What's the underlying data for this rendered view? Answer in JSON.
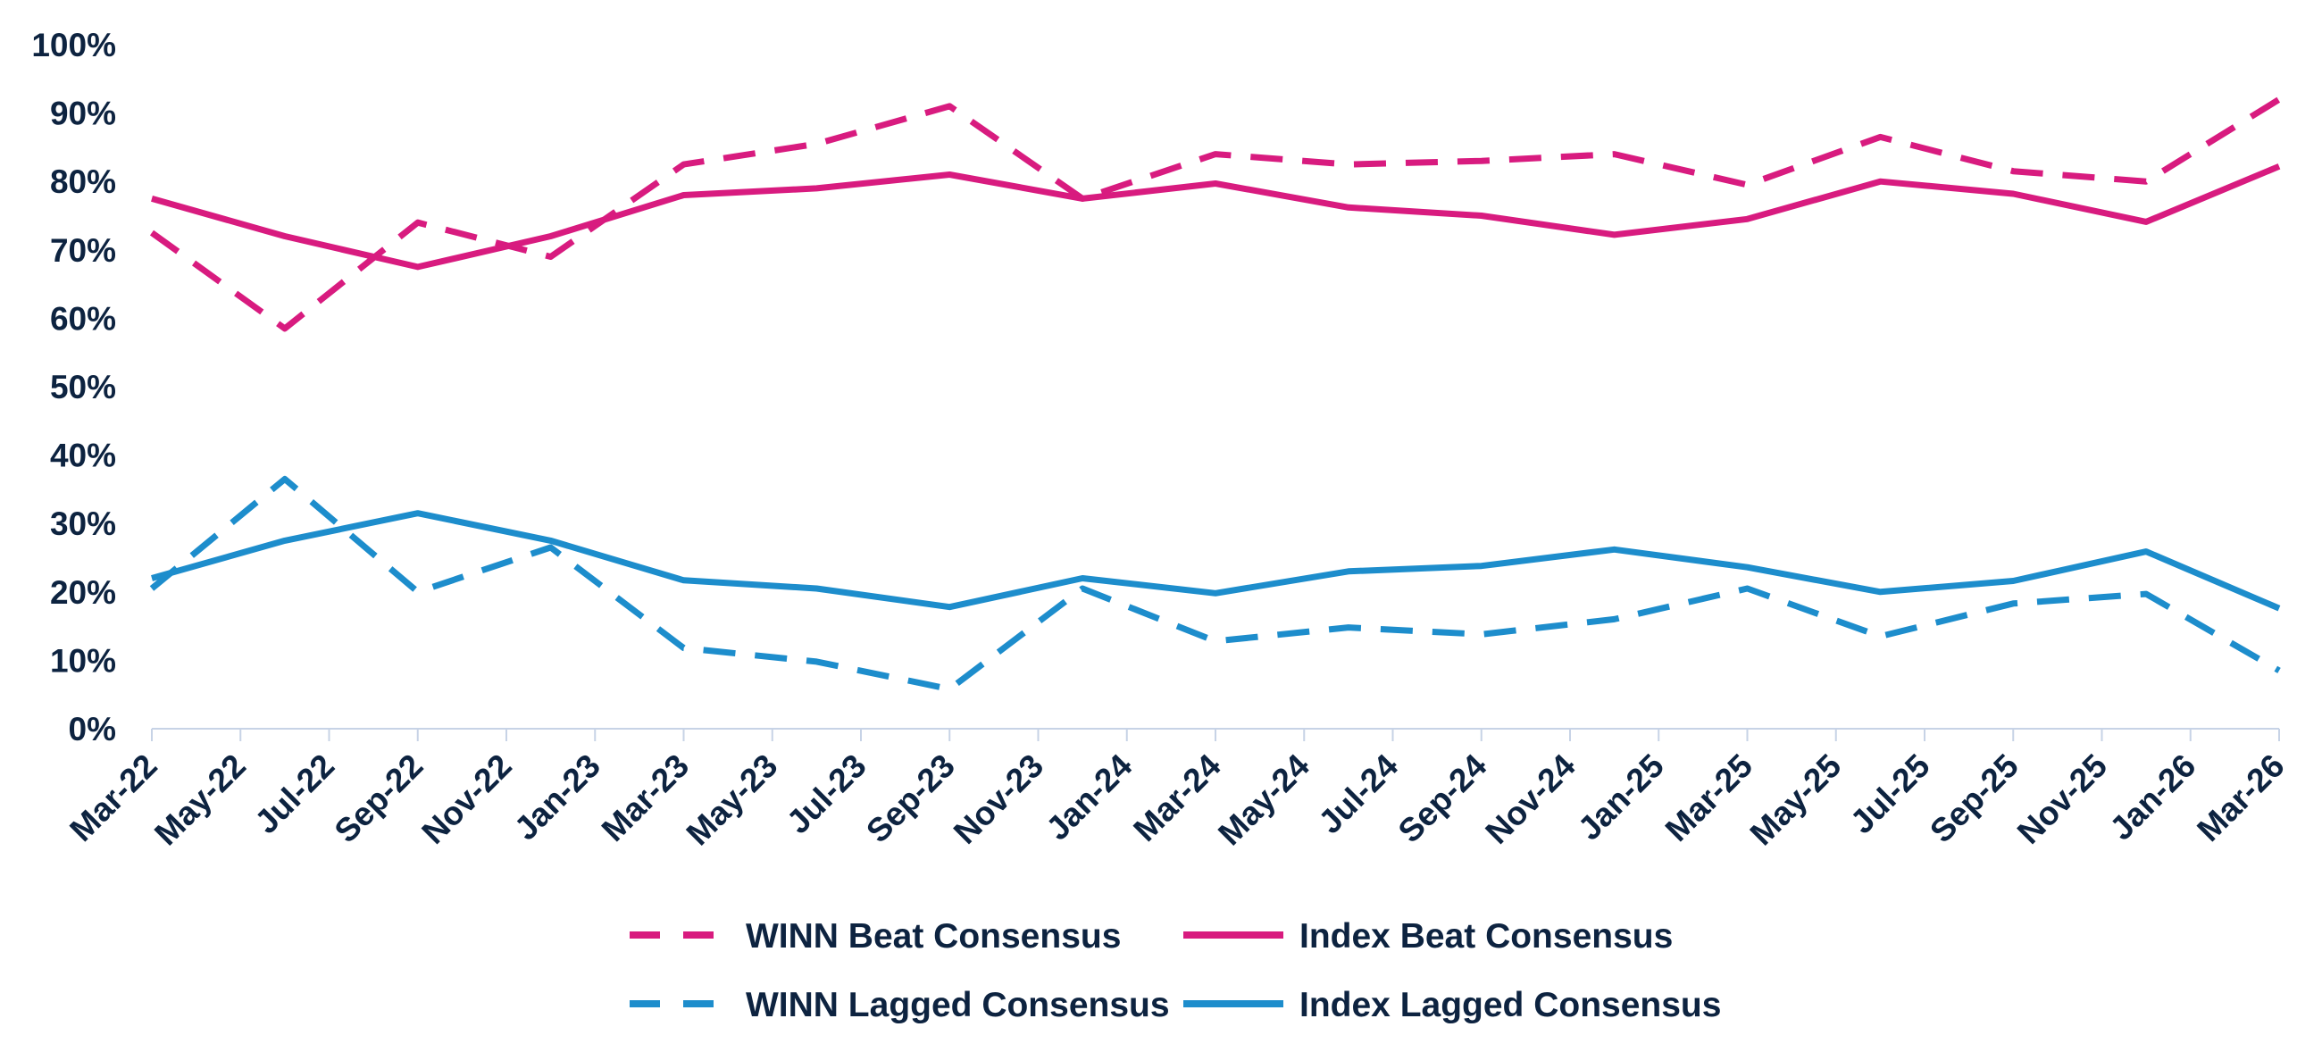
{
  "chart_data": {
    "type": "line",
    "title": "",
    "xlabel": "",
    "ylabel": "",
    "ylim": [
      0,
      100
    ],
    "y_ticks": [
      "0%",
      "10%",
      "20%",
      "30%",
      "40%",
      "50%",
      "60%",
      "70%",
      "80%",
      "90%",
      "100%"
    ],
    "x_ticks": [
      "Mar-22",
      "May-22",
      "Jul-22",
      "Sep-22",
      "Nov-22",
      "Jan-23",
      "Mar-23",
      "May-23",
      "Jul-23",
      "Sep-23",
      "Nov-23",
      "Jan-24",
      "Mar-24",
      "May-24",
      "Jul-24",
      "Sep-24",
      "Nov-24",
      "Jan-25",
      "Mar-25",
      "May-25",
      "Jul-25",
      "Sep-25",
      "Nov-25",
      "Jan-26",
      "Mar-26"
    ],
    "grid": false,
    "legend_position": "bottom",
    "series": [
      {
        "name": "WINN Beat Consensus",
        "color": "#d81b7f",
        "dash": "dashed",
        "x": [
          "Mar-22",
          "Jun-22",
          "Sep-22",
          "Dec-22",
          "Mar-23",
          "Jun-23",
          "Sep-23",
          "Dec-23",
          "Mar-24",
          "Jun-24",
          "Sep-24",
          "Dec-24",
          "Mar-25",
          "Jun-25",
          "Sep-25",
          "Dec-25",
          "Mar-26"
        ],
        "values": [
          72.5,
          58.5,
          74,
          69,
          82.5,
          85.5,
          91,
          77.5,
          84,
          82.5,
          83,
          84,
          79.5,
          86.5,
          81.5,
          80,
          92
        ]
      },
      {
        "name": "Index Beat Consensus",
        "color": "#d81b7f",
        "dash": "solid",
        "x": [
          "Mar-22",
          "Jun-22",
          "Sep-22",
          "Dec-22",
          "Mar-23",
          "Jun-23",
          "Sep-23",
          "Dec-23",
          "Mar-24",
          "Jun-24",
          "Sep-24",
          "Dec-24",
          "Mar-25",
          "Jun-25",
          "Sep-25",
          "Dec-25",
          "Mar-26"
        ],
        "values": [
          77.5,
          72,
          67.5,
          72,
          78,
          79,
          81,
          77.5,
          79.7,
          76.2,
          75,
          72.2,
          74.5,
          80,
          78.2,
          74.1,
          82.2
        ]
      },
      {
        "name": "WINN Lagged Consensus",
        "color": "#1d8dcc",
        "dash": "dashed",
        "x": [
          "Mar-22",
          "Jun-22",
          "Sep-22",
          "Dec-22",
          "Mar-23",
          "Jun-23",
          "Sep-23",
          "Dec-23",
          "Mar-24",
          "Jun-24",
          "Sep-24",
          "Dec-24",
          "Mar-25",
          "Jun-25",
          "Sep-25",
          "Dec-25",
          "Mar-26"
        ],
        "values": [
          20.5,
          36.5,
          20,
          26.5,
          11.8,
          9.8,
          5.8,
          20.5,
          12.8,
          14.8,
          13.8,
          16,
          20.5,
          13.5,
          18.3,
          19.7,
          8.5
        ]
      },
      {
        "name": "Index Lagged Consensus",
        "color": "#1d8dcc",
        "dash": "solid",
        "x": [
          "Mar-22",
          "Jun-22",
          "Sep-22",
          "Dec-22",
          "Mar-23",
          "Jun-23",
          "Sep-23",
          "Dec-23",
          "Mar-24",
          "Jun-24",
          "Sep-24",
          "Dec-24",
          "Mar-25",
          "Jun-25",
          "Sep-25",
          "Dec-25",
          "Mar-26"
        ],
        "values": [
          22,
          27.5,
          31.5,
          27.5,
          21.7,
          20.5,
          17.8,
          22,
          19.8,
          23,
          23.8,
          26.2,
          23.6,
          20,
          21.6,
          25.9,
          17.6
        ]
      }
    ]
  }
}
